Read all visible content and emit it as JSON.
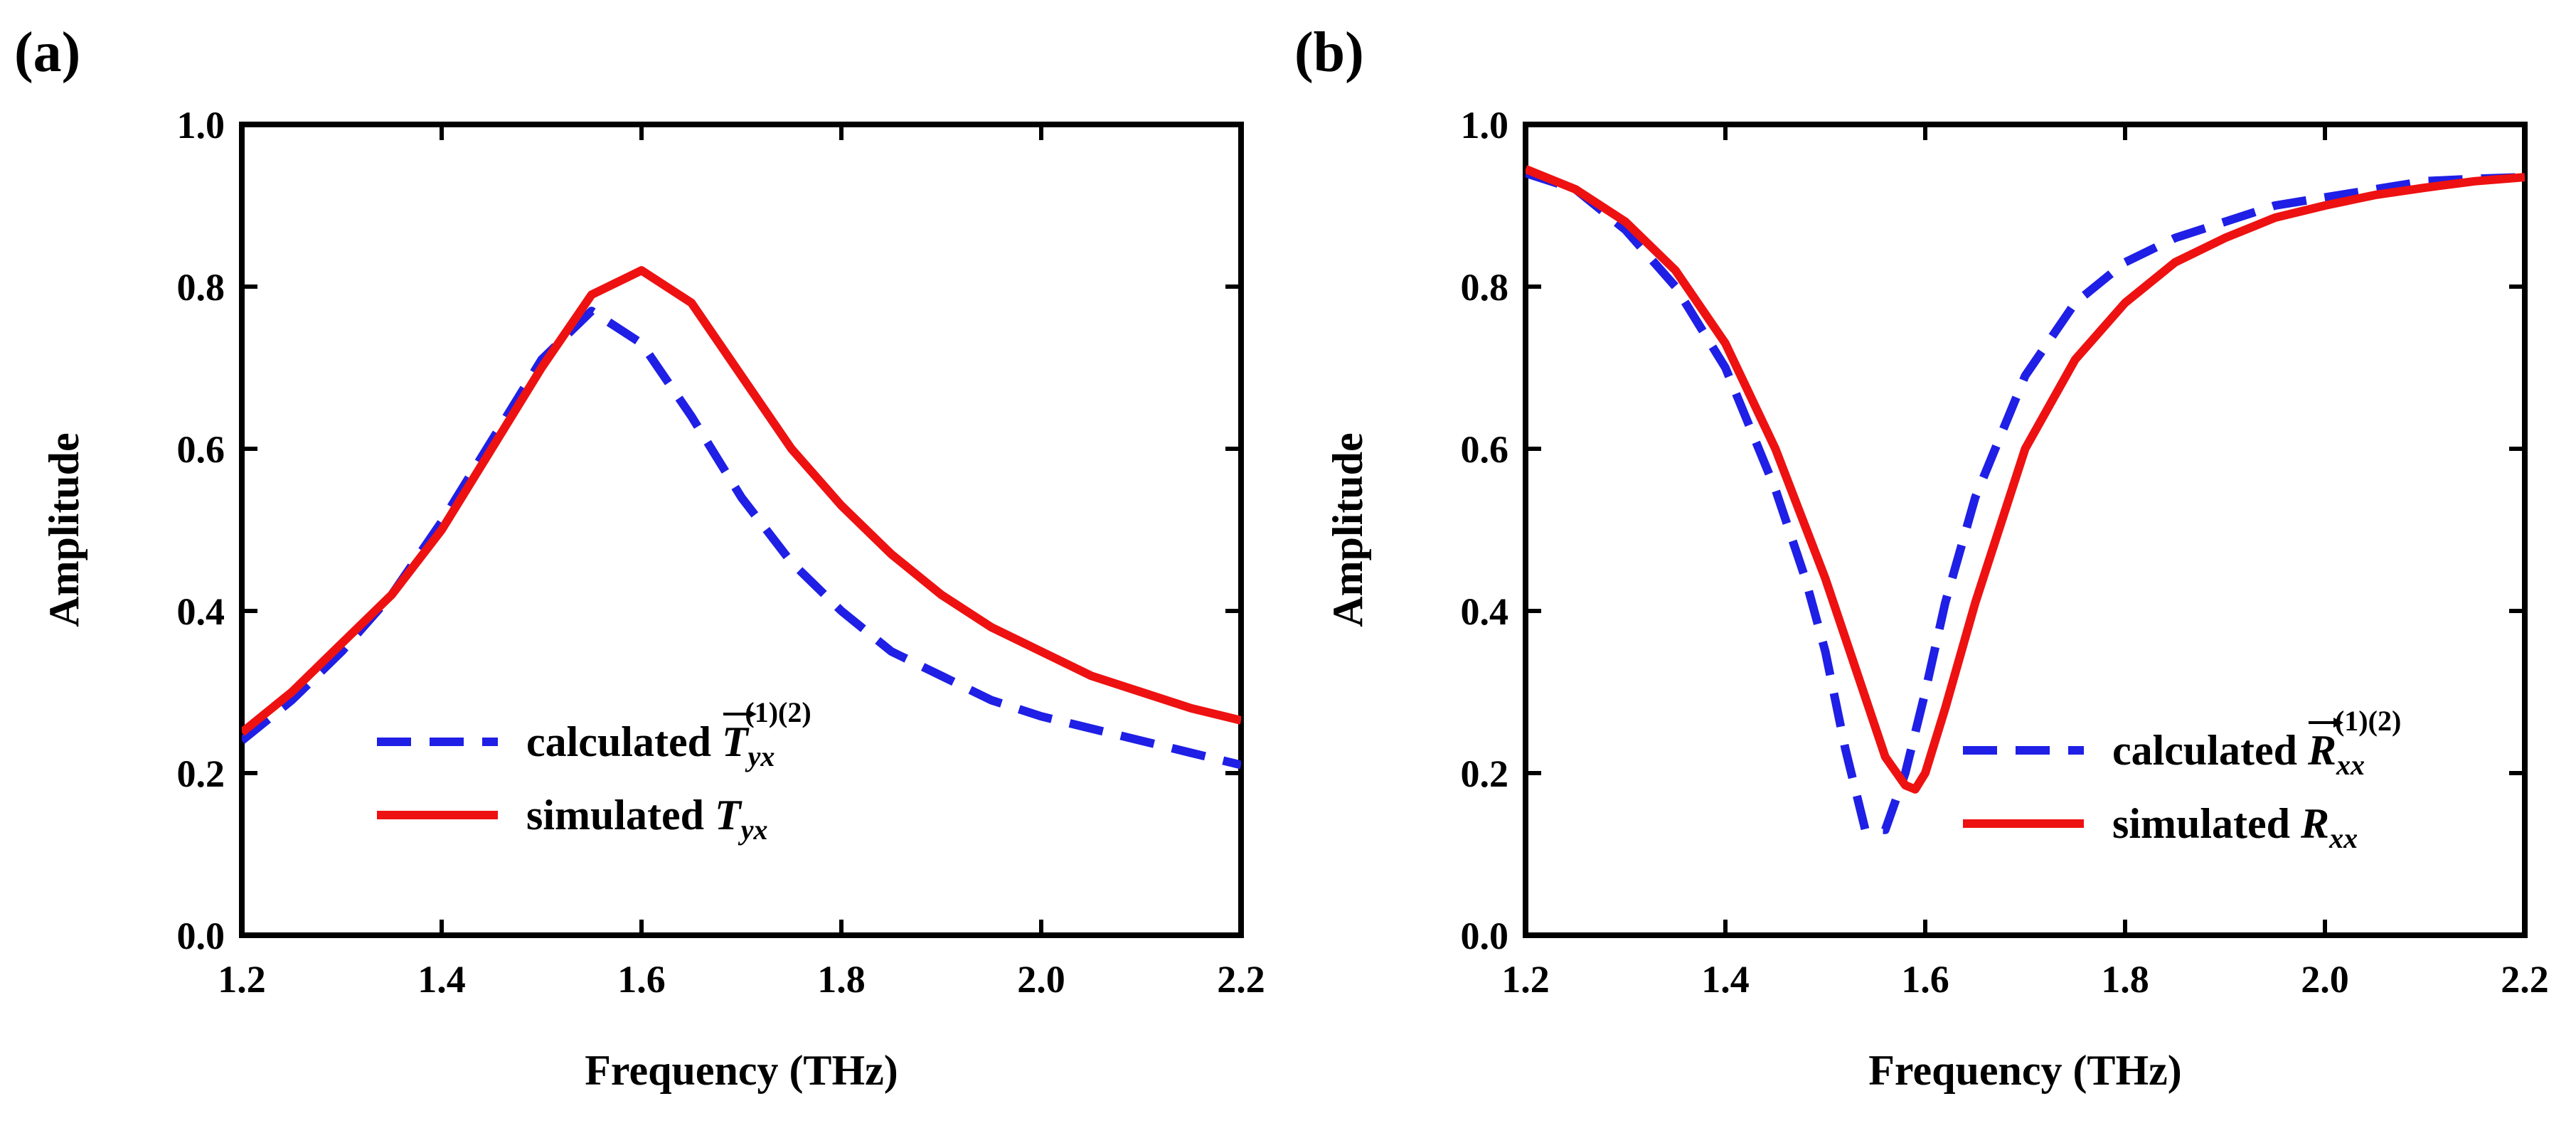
{
  "figure": {
    "background": "#ffffff",
    "colors": {
      "calculated": "#1f1fe6",
      "simulated": "#ee1111",
      "axis": "#000000"
    }
  },
  "chart_data": [
    {
      "id": "a",
      "type": "line",
      "panel_label": "(a)",
      "title": "",
      "xlabel": "Frequency (THz)",
      "ylabel": "Amplitude",
      "xlim": [
        1.2,
        2.2
      ],
      "ylim": [
        0.0,
        1.0
      ],
      "xticks": [
        1.2,
        1.4,
        1.6,
        1.8,
        2.0,
        2.2
      ],
      "xtick_labels": [
        "1.2",
        "1.4",
        "1.6",
        "1.8",
        "2.0",
        "2.2"
      ],
      "yticks": [
        0.0,
        0.2,
        0.4,
        0.6,
        0.8,
        1.0
      ],
      "ytick_labels": [
        "0.0",
        "0.2",
        "0.4",
        "0.6",
        "0.8",
        "1.0"
      ],
      "grid": false,
      "legend_position": "bottom-center",
      "legend": [
        {
          "text": "calculated",
          "symbol": "T",
          "sub": "yx",
          "sup": "(1)(2)",
          "arrow": true,
          "style": "dashed"
        },
        {
          "text": "simulated",
          "symbol": "T",
          "sub": "yx",
          "sup": "",
          "arrow": false,
          "style": "solid"
        }
      ],
      "series": [
        {
          "name": "calculated",
          "style": "dashed",
          "x": [
            1.2,
            1.25,
            1.3,
            1.35,
            1.4,
            1.45,
            1.5,
            1.55,
            1.6,
            1.65,
            1.7,
            1.75,
            1.8,
            1.85,
            1.9,
            1.95,
            2.0,
            2.05,
            2.1,
            2.15,
            2.2
          ],
          "y": [
            0.24,
            0.29,
            0.35,
            0.42,
            0.51,
            0.61,
            0.71,
            0.77,
            0.73,
            0.64,
            0.54,
            0.46,
            0.4,
            0.35,
            0.32,
            0.29,
            0.27,
            0.255,
            0.24,
            0.225,
            0.21
          ]
        },
        {
          "name": "simulated",
          "style": "solid",
          "x": [
            1.2,
            1.25,
            1.3,
            1.35,
            1.4,
            1.45,
            1.5,
            1.55,
            1.6,
            1.65,
            1.7,
            1.75,
            1.8,
            1.85,
            1.9,
            1.95,
            2.0,
            2.05,
            2.1,
            2.15,
            2.2
          ],
          "y": [
            0.25,
            0.3,
            0.36,
            0.42,
            0.5,
            0.6,
            0.7,
            0.79,
            0.82,
            0.78,
            0.69,
            0.6,
            0.53,
            0.47,
            0.42,
            0.38,
            0.35,
            0.32,
            0.3,
            0.28,
            0.265
          ]
        }
      ]
    },
    {
      "id": "b",
      "type": "line",
      "panel_label": "(b)",
      "title": "",
      "xlabel": "Frequency (THz)",
      "ylabel": "Amplitude",
      "xlim": [
        1.2,
        2.2
      ],
      "ylim": [
        0.0,
        1.0
      ],
      "xticks": [
        1.2,
        1.4,
        1.6,
        1.8,
        2.0,
        2.2
      ],
      "xtick_labels": [
        "1.2",
        "1.4",
        "1.6",
        "1.8",
        "2.0",
        "2.2"
      ],
      "yticks": [
        0.0,
        0.2,
        0.4,
        0.6,
        0.8,
        1.0
      ],
      "ytick_labels": [
        "0.0",
        "0.2",
        "0.4",
        "0.6",
        "0.8",
        "1.0"
      ],
      "grid": false,
      "legend_position": "bottom-right",
      "legend": [
        {
          "text": "calculated",
          "symbol": "R",
          "sub": "xx",
          "sup": "(1)(2)",
          "arrow": true,
          "style": "dashed"
        },
        {
          "text": "simulated",
          "symbol": "R",
          "sub": "xx",
          "sup": "",
          "arrow": false,
          "style": "solid"
        }
      ],
      "series": [
        {
          "name": "calculated",
          "style": "dashed",
          "x": [
            1.2,
            1.25,
            1.3,
            1.35,
            1.4,
            1.45,
            1.48,
            1.5,
            1.52,
            1.54,
            1.56,
            1.58,
            1.6,
            1.62,
            1.65,
            1.7,
            1.75,
            1.8,
            1.85,
            1.9,
            1.95,
            2.0,
            2.05,
            2.1,
            2.15,
            2.2
          ],
          "y": [
            0.94,
            0.92,
            0.87,
            0.8,
            0.7,
            0.55,
            0.44,
            0.35,
            0.23,
            0.13,
            0.13,
            0.2,
            0.3,
            0.41,
            0.54,
            0.69,
            0.78,
            0.83,
            0.86,
            0.88,
            0.9,
            0.91,
            0.92,
            0.93,
            0.933,
            0.935
          ]
        },
        {
          "name": "simulated",
          "style": "solid",
          "x": [
            1.2,
            1.25,
            1.3,
            1.35,
            1.4,
            1.45,
            1.5,
            1.53,
            1.56,
            1.58,
            1.59,
            1.6,
            1.62,
            1.65,
            1.7,
            1.75,
            1.8,
            1.85,
            1.9,
            1.95,
            2.0,
            2.05,
            2.1,
            2.15,
            2.2
          ],
          "y": [
            0.945,
            0.92,
            0.88,
            0.82,
            0.73,
            0.6,
            0.44,
            0.33,
            0.22,
            0.185,
            0.18,
            0.2,
            0.28,
            0.41,
            0.6,
            0.71,
            0.78,
            0.83,
            0.86,
            0.885,
            0.9,
            0.913,
            0.922,
            0.93,
            0.935
          ]
        }
      ]
    }
  ]
}
